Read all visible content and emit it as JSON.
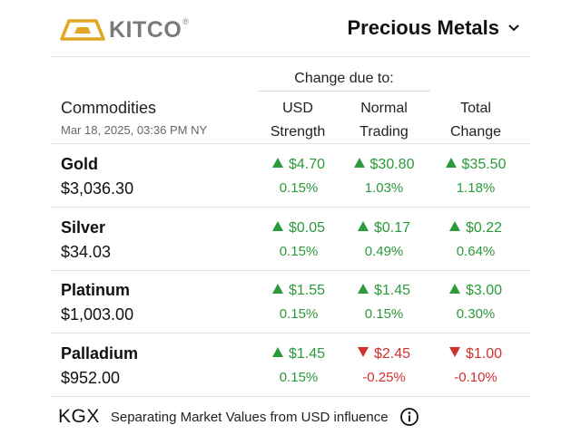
{
  "header": {
    "logo_text": "KITCO",
    "logo_reg": "®",
    "selector_label": "Precious Metals"
  },
  "table": {
    "change_due_to": "Change due to:",
    "commodities_label": "Commodities",
    "timestamp": "Mar 18, 2025, 03:36 PM NY",
    "columns": [
      {
        "line1": "USD",
        "line2": "Strength"
      },
      {
        "line1": "Normal",
        "line2": "Trading"
      },
      {
        "line1": "Total",
        "line2": "Change"
      }
    ],
    "rows": [
      {
        "name": "Gold",
        "price": "$3,036.30",
        "usd": {
          "amt": "$4.70",
          "pct": "0.15%",
          "dir": "up"
        },
        "normal": {
          "amt": "$30.80",
          "pct": "1.03%",
          "dir": "up"
        },
        "total": {
          "amt": "$35.50",
          "pct": "1.18%",
          "dir": "up"
        }
      },
      {
        "name": "Silver",
        "price": "$34.03",
        "usd": {
          "amt": "$0.05",
          "pct": "0.15%",
          "dir": "up"
        },
        "normal": {
          "amt": "$0.17",
          "pct": "0.49%",
          "dir": "up"
        },
        "total": {
          "amt": "$0.22",
          "pct": "0.64%",
          "dir": "up"
        }
      },
      {
        "name": "Platinum",
        "price": "$1,003.00",
        "usd": {
          "amt": "$1.55",
          "pct": "0.15%",
          "dir": "up"
        },
        "normal": {
          "amt": "$1.45",
          "pct": "0.15%",
          "dir": "up"
        },
        "total": {
          "amt": "$3.00",
          "pct": "0.30%",
          "dir": "up"
        }
      },
      {
        "name": "Palladium",
        "price": "$952.00",
        "usd": {
          "amt": "$1.45",
          "pct": "0.15%",
          "dir": "up"
        },
        "normal": {
          "amt": "$2.45",
          "pct": "-0.25%",
          "dir": "down"
        },
        "total": {
          "amt": "$1.00",
          "pct": "-0.10%",
          "dir": "down"
        }
      }
    ]
  },
  "footer": {
    "kgx": "KGX",
    "text": "Separating Market Values from USD influence"
  },
  "colors": {
    "up": "#2b9a3a",
    "down": "#d0312d",
    "logo_gold": "#e0a624",
    "logo_gray": "#7a7a7a"
  },
  "icons": {
    "logo": "kitco-gold-bar-logo-icon",
    "selector": "chevron-down-icon",
    "increase": "triangle-up-icon",
    "decrease": "triangle-down-icon",
    "info": "info-circle-icon"
  }
}
